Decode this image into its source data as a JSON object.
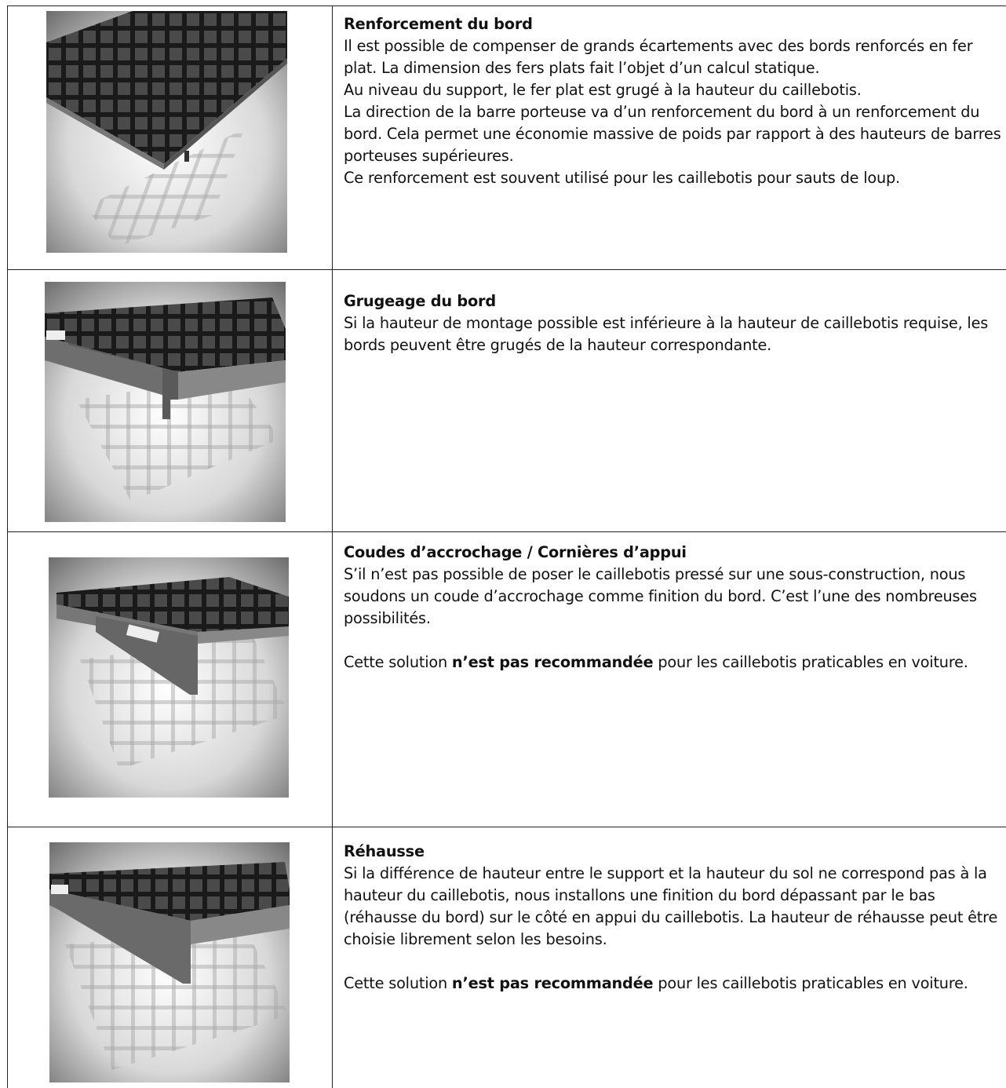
{
  "table": {
    "rows": [
      {
        "title": "Renforcement du bord",
        "paragraphs": [
          [
            "Il est possible de compenser de grands écartements avec des bords renforcés en fer plat. La dimension des fers plats fait l’objet d’un calcul statique."
          ],
          [
            "Au niveau du support, le fer plat est grugé à la hauteur du caillebotis."
          ],
          [
            "La direction de la barre porteuse va d’un renforcement du bord à un renforcement du bord. Cela permet une économie massive de poids par rapport à des hauteurs de barres porteuses supérieures."
          ],
          [
            "Ce renforcement est souvent utilisé pour les caillebotis pour sauts de loup."
          ]
        ]
      },
      {
        "title": "Grugeage du bord",
        "paragraphs": [
          [
            "Si la hauteur de montage possible est inférieure à la hauteur de caillebotis requise, les bords peuvent être grugés de la hauteur correspondante."
          ]
        ]
      },
      {
        "title": "Coudes d’accrochage / Cornières d’appui",
        "paragraphs": [
          [
            "S’il n’est pas possible de poser le caillebotis pressé sur une sous-construction, nous soudons un coude d’accrochage comme finition du bord. C’est l’une des nombreuses possibilités."
          ],
          [
            "Cette solution ",
            "n’est pas recommandée",
            " pour les caillebotis praticables en voiture."
          ]
        ]
      },
      {
        "title": "Réhausse",
        "paragraphs": [
          [
            "Si la différence de hauteur entre le support et la hauteur du sol ne correspond pas à la hauteur du caillebotis, nous installons une finition du bord dépassant par le bas (réhausse du bord) sur le côté en appui du caillebotis. La hauteur de réhausse peut être choisie librement selon les besoins."
          ],
          [
            "Cette solution ",
            "n’est pas recommandée",
            " pour les caillebotis praticables en voiture."
          ]
        ]
      }
    ]
  }
}
